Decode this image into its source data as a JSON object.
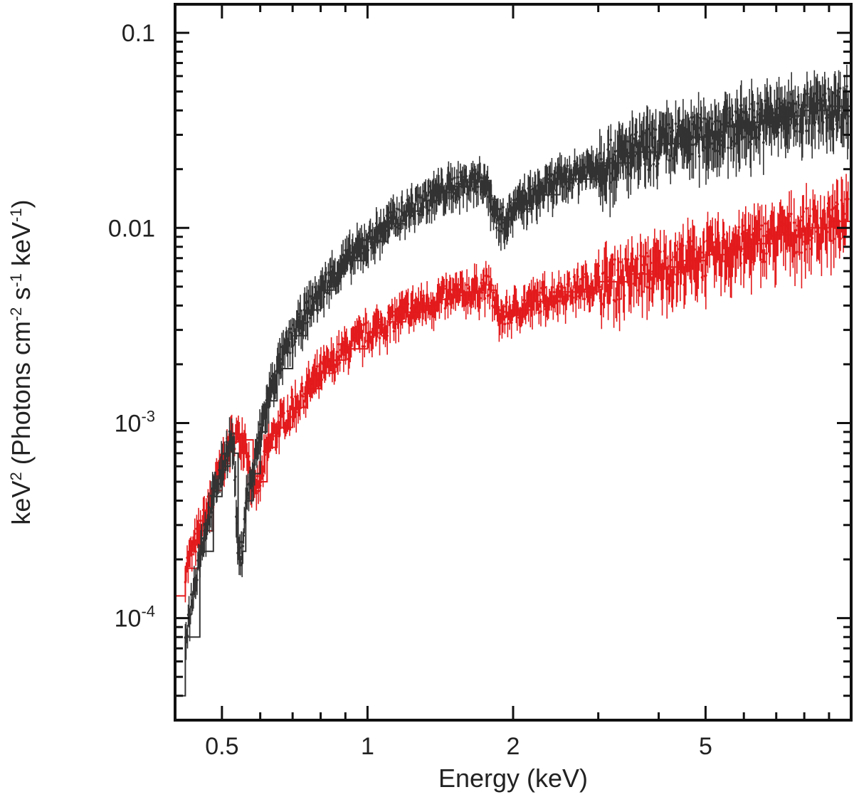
{
  "chart_data": {
    "type": "line",
    "xlabel": "Energy (keV)",
    "ylabel_parts": [
      "keV",
      "2",
      " (Photons cm",
      "-2",
      " s",
      "-1",
      " keV",
      "-1",
      ")"
    ],
    "x_scale": "log",
    "y_scale": "log",
    "xlim": [
      0.4,
      10.0
    ],
    "ylim": [
      3e-05,
      0.14
    ],
    "x_ticks": [
      {
        "value": 0.5,
        "label": "0.5"
      },
      {
        "value": 1,
        "label": "1"
      },
      {
        "value": 2,
        "label": "2"
      },
      {
        "value": 5,
        "label": "5"
      }
    ],
    "y_ticks": [
      {
        "value": 0.0001,
        "base": "10",
        "exp": "-4"
      },
      {
        "value": 0.001,
        "base": "10",
        "exp": "-3"
      },
      {
        "value": 0.01,
        "label": "0.01"
      },
      {
        "value": 0.1,
        "label": "0.1"
      }
    ],
    "series": [
      {
        "color": "#e31a1c",
        "x": [
          0.4,
          0.42,
          0.45,
          0.48,
          0.5,
          0.52,
          0.54,
          0.56,
          0.58,
          0.6,
          0.62,
          0.65,
          0.7,
          0.75,
          0.8,
          0.85,
          0.9,
          1.0,
          1.1,
          1.2,
          1.3,
          1.4,
          1.5,
          1.6,
          1.7,
          1.75,
          1.8,
          1.85,
          1.9,
          2.0,
          2.2,
          2.5,
          3.0,
          3.5,
          4.0,
          4.5,
          5.0,
          5.5,
          6.0,
          7.0,
          8.0,
          9.0,
          10.0
        ],
        "y": [
          0.00013,
          0.00018,
          0.00028,
          0.00045,
          0.00062,
          0.0008,
          0.00088,
          0.00082,
          0.00045,
          0.0005,
          0.00075,
          0.00095,
          0.0012,
          0.0015,
          0.0018,
          0.0021,
          0.0024,
          0.0029,
          0.0033,
          0.0037,
          0.004,
          0.0043,
          0.0045,
          0.0047,
          0.0049,
          0.0051,
          0.0048,
          0.0038,
          0.0035,
          0.0038,
          0.0042,
          0.0047,
          0.0053,
          0.0058,
          0.0063,
          0.0068,
          0.0073,
          0.0078,
          0.0083,
          0.0092,
          0.01,
          0.0108,
          0.0115
        ]
      },
      {
        "color": "#333333",
        "x": [
          0.4,
          0.42,
          0.45,
          0.48,
          0.5,
          0.52,
          0.53,
          0.54,
          0.55,
          0.56,
          0.58,
          0.6,
          0.62,
          0.65,
          0.7,
          0.75,
          0.8,
          0.85,
          0.9,
          1.0,
          1.1,
          1.2,
          1.3,
          1.4,
          1.5,
          1.6,
          1.7,
          1.75,
          1.8,
          1.85,
          1.9,
          2.0,
          2.2,
          2.5,
          3.0,
          3.5,
          4.0,
          4.5,
          5.0,
          5.5,
          6.0,
          7.0,
          8.0,
          9.0,
          10.0
        ],
        "y": [
          4e-05,
          8e-05,
          0.00022,
          0.00042,
          0.0006,
          0.00085,
          0.0007,
          0.0002,
          0.00022,
          0.0004,
          0.00055,
          0.0009,
          0.0013,
          0.0019,
          0.0028,
          0.0038,
          0.0048,
          0.0058,
          0.0068,
          0.0085,
          0.0105,
          0.0122,
          0.0138,
          0.0152,
          0.0163,
          0.0172,
          0.018,
          0.0175,
          0.014,
          0.0115,
          0.011,
          0.0125,
          0.0148,
          0.0178,
          0.0215,
          0.0245,
          0.027,
          0.0292,
          0.0312,
          0.033,
          0.0348,
          0.0375,
          0.04,
          0.042,
          0.044
        ]
      }
    ]
  }
}
